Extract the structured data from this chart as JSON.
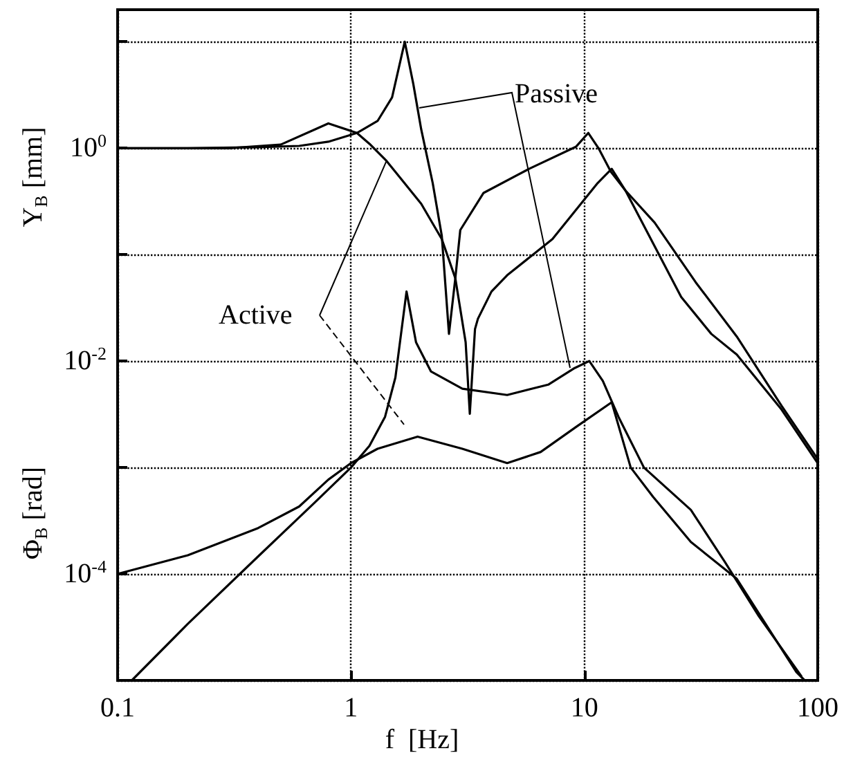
{
  "chart_data": {
    "type": "line",
    "xlabel": "f  [Hz]",
    "ylabel": "Y$_{B}$  [mm]",
    "log": "xy",
    "grid": true,
    "legend": false,
    "marker": "none",
    "line_style": "solid",
    "xlim": [
      0.1,
      100
    ],
    "xticks": [
      0.1,
      1,
      10,
      100
    ],
    "ylim": [
      1e-05,
      20
    ],
    "yticks": [
      {
        "value": 1e-05,
        "label": null
      },
      {
        "value": 0.0001,
        "label": "10$^{-4}$"
      },
      {
        "value": 0.001,
        "label": null
      },
      {
        "value": 0.01,
        "label": "10$^{-2}$"
      },
      {
        "value": 0.1,
        "label": null
      },
      {
        "value": 1,
        "label": "10$^{0}$"
      },
      {
        "value": 10,
        "label": null
      }
    ],
    "annotations": [
      "Passive",
      {
        "text": "Active",
        "x": 1.42,
        "y": 0.76
      },
      "Φ$_{B}$  [rad]"
    ],
    "series": [
      {
        "color": "#000000",
        "x": [
          0.1,
          0.2,
          0.4,
          0.6,
          0.8,
          1.06,
          1.3,
          1.5,
          1.7,
          1.85,
          2.0,
          2.24,
          2.45,
          2.63,
          2.8,
          2.94,
          3.7,
          5.8,
          9.2,
          10.4,
          11.5,
          13,
          15,
          20,
          30,
          45,
          70,
          100
        ],
        "values": [
          1.0,
          1.0,
          1.02,
          1.05,
          1.15,
          1.39,
          1.8,
          3,
          10,
          4,
          1.5,
          0.47,
          0.15,
          0.018,
          0.06,
          0.17,
          0.38,
          0.64,
          1.03,
          1.39,
          1.0,
          0.6,
          0.4,
          0.2,
          0.055,
          0.017,
          0.0038,
          0.0012
        ]
      },
      {
        "color": "#000000",
        "x": [
          0.1,
          0.3,
          0.5,
          0.7,
          0.8,
          1.06,
          1.2,
          1.42,
          2.0,
          2.45,
          2.8,
          3.1,
          3.23,
          3.4,
          3.5,
          4,
          4.67,
          7.3,
          11.4,
          13.1,
          15,
          20,
          26,
          35,
          45,
          70,
          100
        ],
        "values": [
          1.0,
          1.0,
          1.08,
          1.5,
          1.71,
          1.39,
          1.1,
          0.76,
          0.3,
          0.14,
          0.06,
          0.015,
          0.0032,
          0.02,
          0.025,
          0.045,
          0.064,
          0.14,
          0.47,
          0.64,
          0.4,
          0.12,
          0.04,
          0.018,
          0.0115,
          0.0035,
          0.0011
        ]
      },
      {
        "color": "#000000",
        "x": [
          0.115,
          0.2,
          0.4,
          0.7,
          1,
          1.2,
          1.4,
          1.55,
          1.73,
          1.9,
          2.2,
          3,
          4.67,
          7,
          9,
          10.5,
          12,
          14,
          18,
          28.6,
          40,
          56,
          85
        ],
        "values": [
          1e-05,
          3.4e-05,
          0.000146,
          0.00047,
          0.001,
          0.0016,
          0.003,
          0.007,
          0.045,
          0.015,
          0.008,
          0.0055,
          0.0048,
          0.006,
          0.0085,
          0.01,
          0.0065,
          0.003,
          0.001,
          0.0004,
          0.00013,
          4e-05,
          1.1e-05
        ]
      },
      {
        "color": "#000000",
        "x": [
          0.1,
          0.2,
          0.4,
          0.6,
          0.8,
          1,
          1.3,
          1.93,
          3,
          4.67,
          6.5,
          9.2,
          13.1,
          15.8,
          19.7,
          28.6,
          45,
          81,
          88
        ],
        "values": [
          0.0001,
          0.00015,
          0.00027,
          0.00043,
          0.00077,
          0.0011,
          0.0015,
          0.00195,
          0.0015,
          0.0011,
          0.0014,
          0.0024,
          0.0041,
          0.001,
          0.00053,
          0.0002,
          9e-05,
          1.2e-05,
          1e-05
        ]
      }
    ]
  }
}
